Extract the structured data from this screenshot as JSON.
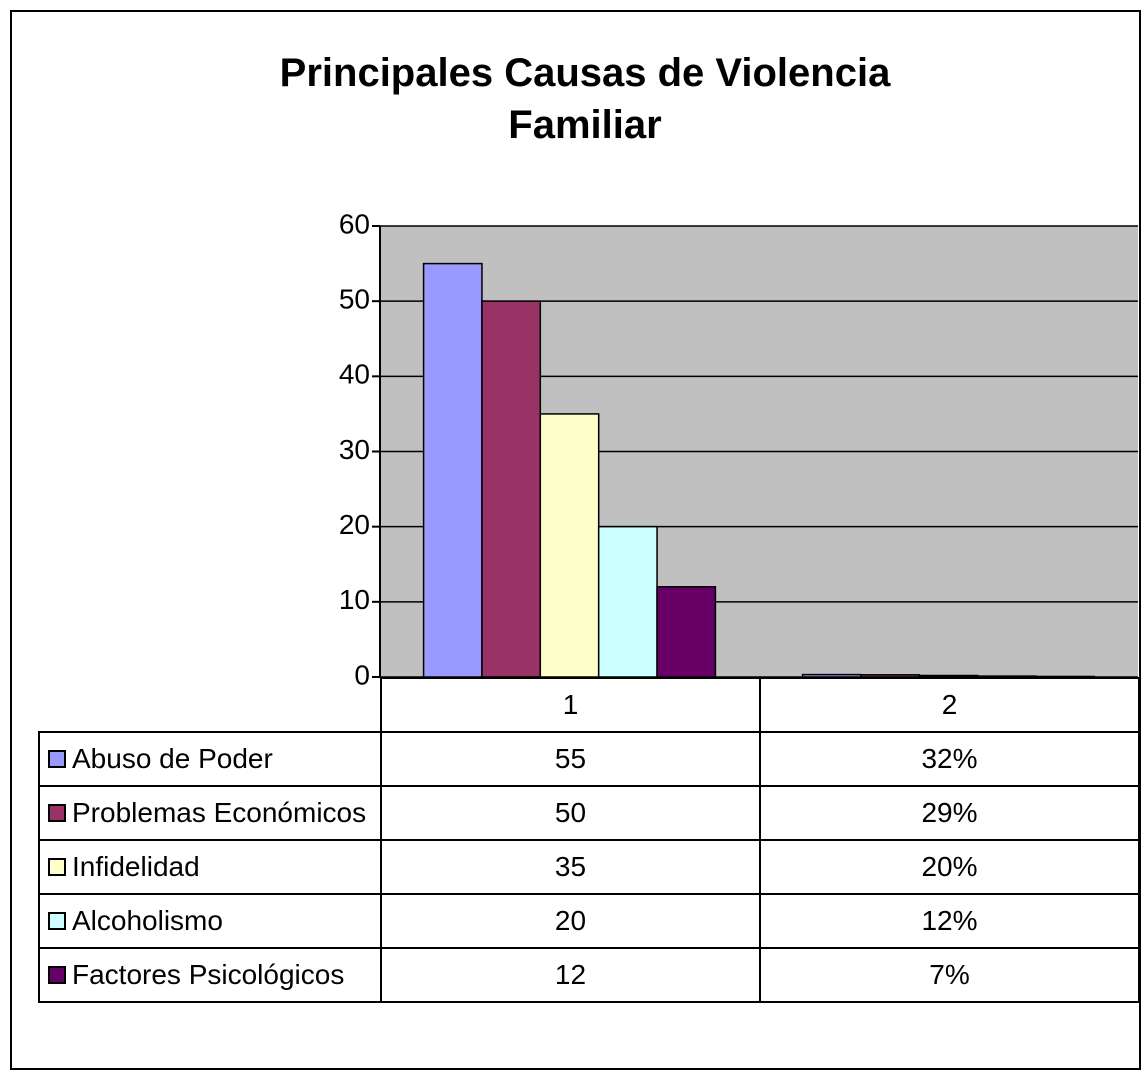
{
  "chart_data": {
    "type": "bar",
    "title": "Principales Causas de Violencia Familiar",
    "categories": [
      "1",
      "2"
    ],
    "series": [
      {
        "name": "Abuso de Poder",
        "color": "#9999ff",
        "values": [
          55,
          0.32
        ],
        "value_labels": [
          "55",
          "32%"
        ]
      },
      {
        "name": "Problemas Económicos",
        "color": "#993366",
        "values": [
          50,
          0.29
        ],
        "value_labels": [
          "50",
          "29%"
        ]
      },
      {
        "name": "Infidelidad",
        "color": "#ffffcc",
        "values": [
          35,
          0.2
        ],
        "value_labels": [
          "35",
          "20%"
        ]
      },
      {
        "name": "Alcoholismo",
        "color": "#ccffff",
        "values": [
          20,
          0.12
        ],
        "value_labels": [
          "20",
          "12%"
        ]
      },
      {
        "name": "Factores Psicológicos",
        "color": "#660066",
        "values": [
          12,
          0.07
        ],
        "value_labels": [
          "12",
          "7%"
        ]
      }
    ],
    "ylim": [
      0,
      60
    ],
    "yticks": [
      0,
      10,
      20,
      30,
      40,
      50,
      60
    ],
    "grid": true,
    "legend": "table"
  }
}
